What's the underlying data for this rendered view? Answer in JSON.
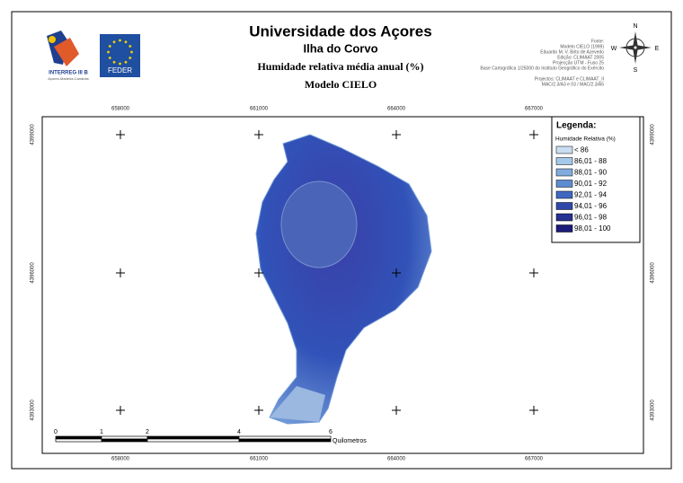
{
  "header": {
    "title": "Universidade dos Açores",
    "subtitle": "Ilha do Corvo",
    "theme": "Humidade relativa média anual (%)",
    "model": "Modelo CIELO"
  },
  "logos": {
    "interreg": "INTERREG III B",
    "interreg_sub": "Açores-Madeira-Canárias",
    "feder": "FEDER"
  },
  "credits": [
    "Fonte:",
    "Modelo CIELO (1999)",
    "Eduardo M. V. Brito de Azevedo",
    "Edição: CLIMAAT 2005",
    "Projecção UTM - Fuso 25",
    "Base Cartográfica 1/25000 do Instituto Geográfico do Exército",
    "Projectos: CLIMAAT e CLIMAAT_II",
    "MAC/2.3/A3 e 03 / MAC/2.3/A5"
  ],
  "compass": {
    "n": "N",
    "s": "S",
    "e": "E",
    "w": "W"
  },
  "grid": {
    "eastings": [
      "658000",
      "661000",
      "664000",
      "667000"
    ],
    "northings": [
      "4399000",
      "4396000",
      "4393000"
    ]
  },
  "legend": {
    "title": "Legenda:",
    "subtitle": "Humidade Relativa (%)",
    "classes": [
      {
        "label": "< 86",
        "color": "#c9def0"
      },
      {
        "label": "86,01 - 88",
        "color": "#a6c8e8"
      },
      {
        "label": "88,01 - 90",
        "color": "#82aadc"
      },
      {
        "label": "90,01 - 92",
        "color": "#5e8bd0"
      },
      {
        "label": "92,01 - 94",
        "color": "#4168c0"
      },
      {
        "label": "94,01 - 96",
        "color": "#3049a8"
      },
      {
        "label": "96,01 - 98",
        "color": "#263090"
      },
      {
        "label": "98,01 - 100",
        "color": "#1b1b78"
      }
    ]
  },
  "scale_bar": {
    "labels": [
      "0",
      "1",
      "2",
      "4",
      "6"
    ],
    "unit": "Quilometros"
  }
}
